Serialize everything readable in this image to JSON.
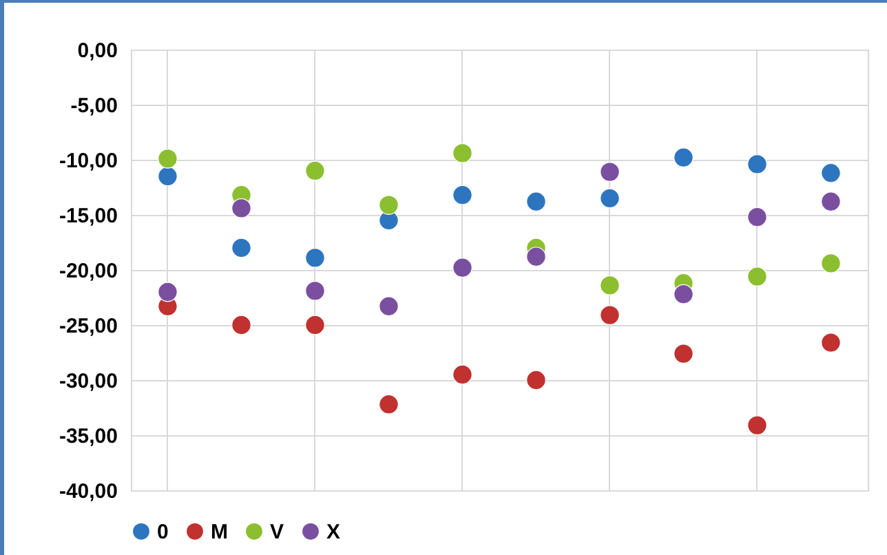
{
  "chart_data": {
    "type": "scatter",
    "categories": [
      null,
      null,
      null,
      null,
      null,
      null,
      null,
      null,
      null,
      null
    ],
    "ylim": [
      -40,
      0
    ],
    "yticks": [
      {
        "value": 0,
        "label": "0,00"
      },
      {
        "value": -5,
        "label": "-5,00"
      },
      {
        "value": -10,
        "label": "-10,00"
      },
      {
        "value": -15,
        "label": "-15,00"
      },
      {
        "value": -20,
        "label": "-20,00"
      },
      {
        "value": -25,
        "label": "-25,00"
      },
      {
        "value": -30,
        "label": "-30,00"
      },
      {
        "value": -35,
        "label": "-35,00"
      },
      {
        "value": -40,
        "label": "-40,00"
      }
    ],
    "grid": true,
    "legend": "bottom",
    "marker": "circle",
    "series": [
      {
        "name": "0",
        "color": "#2e75c0",
        "values": [
          -11.5,
          -18.0,
          -18.9,
          -15.5,
          -13.2,
          -13.8,
          -13.5,
          -9.8,
          -10.4,
          -11.2
        ]
      },
      {
        "name": "M",
        "color": "#c0312f",
        "values": [
          -23.3,
          -25.0,
          -25.0,
          -32.2,
          -29.5,
          -30.0,
          -24.1,
          -27.6,
          -34.1,
          -26.6
        ]
      },
      {
        "name": "V",
        "color": "#8cbf2f",
        "values": [
          -9.9,
          -13.2,
          -11.0,
          -14.1,
          -9.4,
          -18.0,
          -21.4,
          -21.2,
          -20.6,
          -19.4
        ]
      },
      {
        "name": "X",
        "color": "#7a4fa0",
        "values": [
          -22.0,
          -14.4,
          -21.9,
          -23.3,
          -19.8,
          -18.8,
          -11.1,
          -22.2,
          -15.2,
          -13.8
        ]
      }
    ]
  }
}
